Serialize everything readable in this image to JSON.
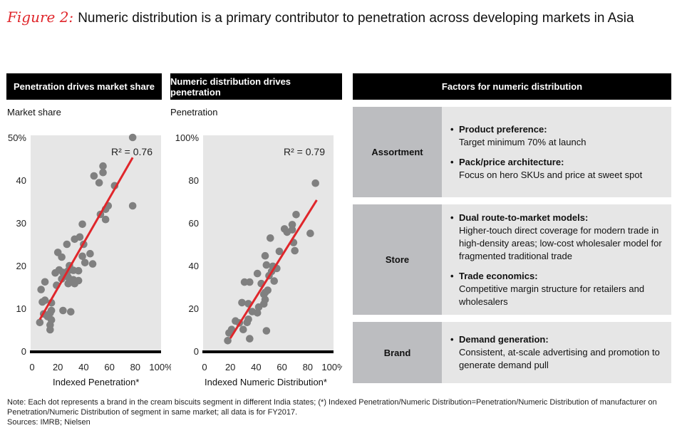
{
  "title": {
    "figure_label": "Figure 2:",
    "text": "Numeric distribution is a primary contributor to penetration across developing markets in Asia"
  },
  "colors": {
    "accent": "#e0262b",
    "dot": "#808080",
    "plot_bg": "#e6e6e6",
    "header_bg": "#000000",
    "label_col": "#bcbdc0"
  },
  "chart_data": [
    {
      "type": "scatter",
      "title": "Penetration drives market share",
      "ylabel": "Market share",
      "xlabel": "Indexed Penetration*",
      "xlim": [
        0,
        100
      ],
      "ylim": [
        0,
        50
      ],
      "xticks": [
        "0",
        "20",
        "40",
        "60",
        "80",
        "100%"
      ],
      "yticks": [
        "0",
        "10",
        "20",
        "30",
        "40",
        "50%"
      ],
      "annotation": "R² = 0.76",
      "trendline": [
        [
          6,
          7.4
        ],
        [
          78,
          45.3
        ]
      ],
      "points": [
        [
          78,
          50
        ],
        [
          55,
          43.3
        ],
        [
          55,
          41.8
        ],
        [
          48,
          41
        ],
        [
          52,
          39.4
        ],
        [
          64,
          38.7
        ],
        [
          78,
          34
        ],
        [
          59,
          34
        ],
        [
          57,
          33.2
        ],
        [
          53,
          32
        ],
        [
          57,
          30.8
        ],
        [
          39,
          29.7
        ],
        [
          37,
          26.7
        ],
        [
          33,
          26.2
        ],
        [
          40,
          25
        ],
        [
          27,
          25
        ],
        [
          20,
          23.1
        ],
        [
          45,
          22.8
        ],
        [
          23,
          22
        ],
        [
          39,
          22.2
        ],
        [
          41,
          20.7
        ],
        [
          47,
          20.4
        ],
        [
          29,
          20
        ],
        [
          21,
          19
        ],
        [
          18,
          18.3
        ],
        [
          24,
          18.4
        ],
        [
          28,
          18.8
        ],
        [
          32,
          18.9
        ],
        [
          36,
          18.8
        ],
        [
          23,
          16.9
        ],
        [
          28,
          17.3
        ],
        [
          32,
          16.7
        ],
        [
          36,
          16.5
        ],
        [
          28,
          15.8
        ],
        [
          33,
          15.8
        ],
        [
          19,
          15.4
        ],
        [
          10,
          16.2
        ],
        [
          7,
          14.4
        ],
        [
          8,
          11.5
        ],
        [
          10,
          11.9
        ],
        [
          15,
          11.3
        ],
        [
          15,
          9.5
        ],
        [
          14,
          8.9
        ],
        [
          24,
          9.5
        ],
        [
          30,
          9.2
        ],
        [
          9,
          8.7
        ],
        [
          12,
          8.1
        ],
        [
          15,
          7.3
        ],
        [
          6,
          6.7
        ],
        [
          14,
          6.1
        ],
        [
          14,
          5
        ]
      ]
    },
    {
      "type": "scatter",
      "title": "Numeric distribution drives penetration",
      "ylabel": "Penetration",
      "xlabel": "Indexed Numeric Distribution*",
      "xlim": [
        0,
        100
      ],
      "ylim": [
        0,
        100
      ],
      "xticks": [
        "0",
        "20",
        "40",
        "60",
        "80",
        "100%"
      ],
      "yticks": [
        "0",
        "20",
        "40",
        "60",
        "80",
        "100%"
      ],
      "annotation": "R² = 0.79",
      "trendline": [
        [
          20,
          6
        ],
        [
          87,
          70.7
        ]
      ],
      "points": [
        [
          86,
          78.6
        ],
        [
          71,
          63.9
        ],
        [
          68,
          59.2
        ],
        [
          68,
          56.8
        ],
        [
          62,
          57.2
        ],
        [
          64,
          55.7
        ],
        [
          82,
          55.1
        ],
        [
          51,
          52.9
        ],
        [
          69,
          50.8
        ],
        [
          58,
          46.7
        ],
        [
          70,
          47
        ],
        [
          47,
          44.6
        ],
        [
          48,
          40.3
        ],
        [
          53,
          39.7
        ],
        [
          56,
          38.7
        ],
        [
          52,
          37.3
        ],
        [
          41,
          36.3
        ],
        [
          50,
          35.3
        ],
        [
          31,
          32.3
        ],
        [
          35,
          32.3
        ],
        [
          44,
          31.6
        ],
        [
          54,
          32.8
        ],
        [
          49,
          28.5
        ],
        [
          47,
          27.4
        ],
        [
          46,
          26.6
        ],
        [
          47,
          24.1
        ],
        [
          46,
          22.1
        ],
        [
          29,
          22.7
        ],
        [
          34,
          22.2
        ],
        [
          42,
          20.6
        ],
        [
          37,
          18.5
        ],
        [
          41,
          17.9
        ],
        [
          34,
          14.9
        ],
        [
          33,
          13.4
        ],
        [
          24,
          14.1
        ],
        [
          27,
          13.2
        ],
        [
          21,
          10.1
        ],
        [
          19,
          8.5
        ],
        [
          30,
          10.1
        ],
        [
          48,
          9.5
        ],
        [
          35,
          5.8
        ],
        [
          18,
          4.9
        ]
      ]
    }
  ],
  "factors": {
    "header": "Factors for numeric distribution",
    "rows": [
      {
        "label": "Assortment",
        "items": [
          {
            "heading": "Product preference:",
            "text": "Target minimum 70% at launch"
          },
          {
            "heading": "Pack/price architecture:",
            "text": "Focus on hero SKUs and price at sweet spot"
          }
        ]
      },
      {
        "label": "Store",
        "items": [
          {
            "heading": "Dual route-to-market models:",
            "text": "Higher-touch direct coverage for modern trade in high-density areas; low-cost wholesaler model for fragmented traditional trade"
          },
          {
            "heading": "Trade economics:",
            "text": "Competitive margin structure for retailers and wholesalers"
          }
        ]
      },
      {
        "label": "Brand",
        "items": [
          {
            "heading": "Demand generation:",
            "text": "Consistent, at-scale advertising and promotion to generate demand pull"
          }
        ]
      }
    ],
    "bullet": "•"
  },
  "footnote": {
    "note": "Note: Each dot represents a brand in the cream biscuits segment in different India states; (*) Indexed Penetration/Numeric Distribution=Penetration/Numeric Distribution of manufacturer on Penetration/Numeric Distribution of segment in same market; all data is for FY2017.",
    "sources": "Sources: IMRB; Nielsen"
  }
}
